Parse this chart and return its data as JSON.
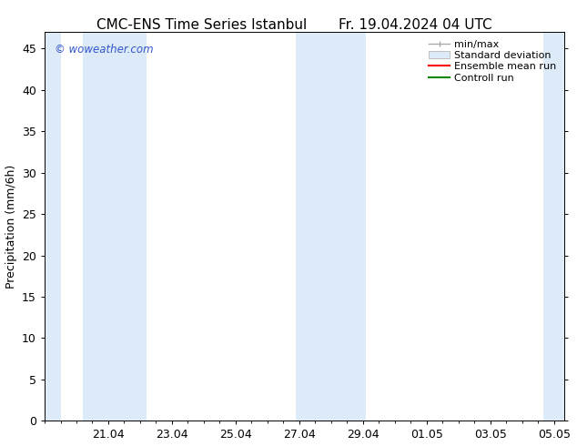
{
  "title_left": "CMC-ENS Time Series Istanbul",
  "title_right": "Fr. 19.04.2024 04 UTC",
  "ylabel": "Precipitation (mm/6h)",
  "watermark": "© woweather.com",
  "background_color": "#ffffff",
  "plot_bg_color": "#ffffff",
  "ylim": [
    0,
    47
  ],
  "yticks": [
    0,
    5,
    10,
    15,
    20,
    25,
    30,
    35,
    40,
    45
  ],
  "xtick_labels": [
    "21.04",
    "23.04",
    "25.04",
    "27.04",
    "29.04",
    "01.05",
    "03.05",
    "05.05"
  ],
  "band_color": "#ddeaf7",
  "tick_color": "#000000",
  "spine_color": "#000000",
  "font_size": 9,
  "title_font_size": 11,
  "watermark_color": "#3355cc",
  "legend_font_size": 8,
  "minmax_color": "#aaaaaa",
  "ensemble_color": "#ff0000",
  "control_color": "#008800"
}
